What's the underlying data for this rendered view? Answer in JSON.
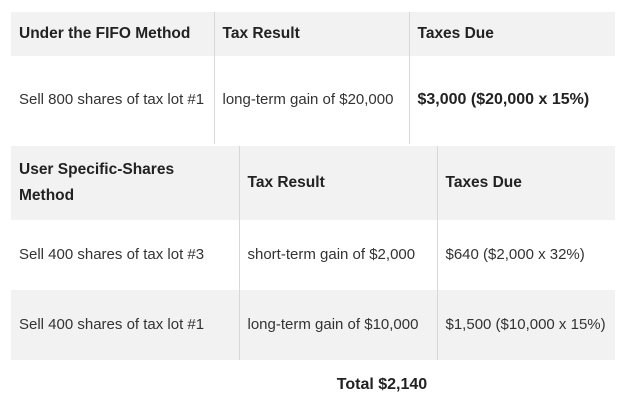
{
  "fifo_table": {
    "headers": [
      "Under the FIFO Method",
      "Tax Result",
      "Taxes Due"
    ],
    "row": {
      "action": "Sell 800 shares of tax lot #1",
      "result": "long-term gain of $20,000",
      "taxes": "$3,000 ($20,000 x 15%)"
    }
  },
  "specific_table": {
    "headers": [
      "User Specific-Shares Method",
      "Tax Result",
      "Taxes Due"
    ],
    "rows": [
      {
        "action": "Sell 400 shares of tax lot #3",
        "result": "short-term gain of $2,000",
        "taxes": "$640 ($2,000 x 32%)"
      },
      {
        "action": "Sell 400 shares of tax lot #1",
        "result": "long-term gain of $10,000",
        "taxes": "$1,500 ($10,000 x 15%)"
      }
    ]
  },
  "total": "Total $2,140"
}
